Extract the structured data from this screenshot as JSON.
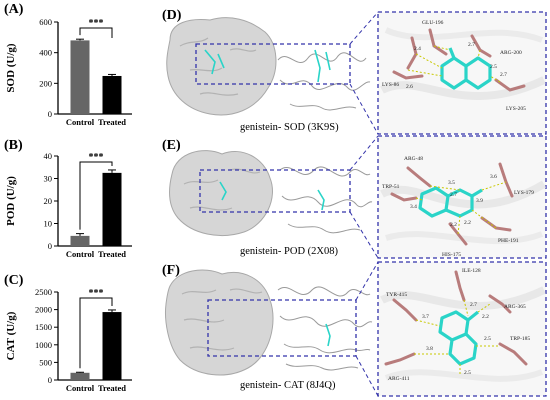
{
  "panels": {
    "A": "(A)",
    "B": "(B)",
    "C": "(C)",
    "D": "(D)",
    "E": "(E)",
    "F": "(F)"
  },
  "chart_data": [
    {
      "id": "A",
      "type": "bar",
      "categories": [
        "Control",
        "Treated"
      ],
      "values": [
        480,
        248
      ],
      "errors": [
        8,
        10
      ],
      "ylabel": "SOD (U/g)",
      "ylim": [
        0,
        600
      ],
      "yticks": [
        0,
        200,
        400,
        600
      ],
      "colors": [
        "#666666",
        "#000000"
      ],
      "significance": "***"
    },
    {
      "id": "B",
      "type": "bar",
      "categories": [
        "Control",
        "Treated"
      ],
      "values": [
        4.5,
        32.5
      ],
      "errors": [
        1.0,
        1.3
      ],
      "ylabel": "POD (U/g)",
      "ylim": [
        0,
        40
      ],
      "yticks": [
        0,
        10,
        20,
        30,
        40
      ],
      "colors": [
        "#666666",
        "#000000"
      ],
      "significance": "***"
    },
    {
      "id": "C",
      "type": "bar",
      "categories": [
        "Control",
        "Treated"
      ],
      "values": [
        205,
        1930
      ],
      "errors": [
        15,
        60
      ],
      "ylabel": "CAT (U/g)",
      "ylim": [
        0,
        2500
      ],
      "yticks": [
        0,
        500,
        1000,
        1500,
        2000,
        2500
      ],
      "colors": [
        "#666666",
        "#000000"
      ],
      "significance": "***"
    }
  ],
  "docking": [
    {
      "id": "D",
      "caption": "genistein- SOD (3K9S)",
      "residues": [
        "GLU-196",
        "ARG-200",
        "LYS-86",
        "LYS-205"
      ],
      "distances": [
        "2.4",
        "2.7",
        "2.6",
        "2.5",
        "2.7"
      ]
    },
    {
      "id": "E",
      "caption": "genistein- POD (2X08)",
      "residues": [
        "ARG-48",
        "TRP-51",
        "LYS-179",
        "HIS-175",
        "PHE-191"
      ],
      "distances": [
        "3.5",
        "3.6",
        "2.7",
        "3.4",
        "2.2",
        "2.2",
        "3.9"
      ]
    },
    {
      "id": "F",
      "caption": "genistein- CAT (8J4Q)",
      "residues": [
        "ILE-128",
        "TYR-415",
        "ARG-365",
        "TRP-185",
        "ARG-411"
      ],
      "distances": [
        "2.7",
        "2.2",
        "3.7",
        "2.5",
        "3.8",
        "2.5"
      ]
    }
  ],
  "colors": {
    "bar_control": "#666666",
    "bar_treated": "#000000",
    "box_dash": "#3333aa",
    "ligand": "#2ad4c8",
    "residue": "#b87c7c",
    "surface": "#d9d9d9",
    "nitrogen": "#3a3ae0",
    "oxygen": "#e03030"
  }
}
